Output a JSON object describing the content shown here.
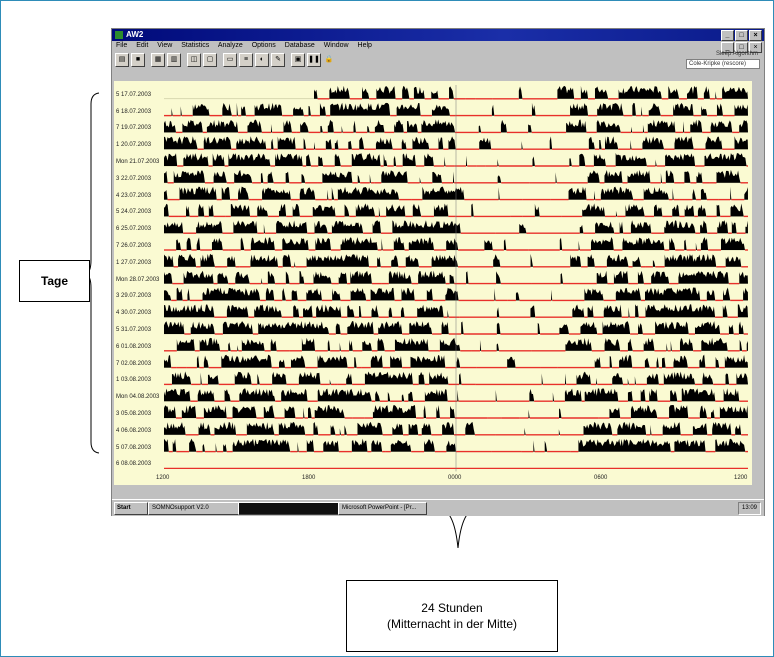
{
  "window": {
    "title": "AW2",
    "menu": [
      "File",
      "Edit",
      "View",
      "Statistics",
      "Analyze",
      "Options",
      "Database",
      "Window",
      "Help"
    ],
    "controls": [
      "_",
      "□",
      "×"
    ]
  },
  "algorithm": {
    "label": "Sleep Algorithm",
    "selected": "Cole-Kripke (rescore)"
  },
  "toolbar": {
    "icons": [
      "open-icon",
      "save-icon",
      "print-icon",
      "print-preview-icon",
      "zoom-icon",
      "copy-icon",
      "window-icon",
      "list-icon",
      "pie-chart-icon",
      "edit-icon",
      "report-icon",
      "pause-icon",
      "lock-icon"
    ]
  },
  "actogram": {
    "rows": [
      "5 17.07.2003",
      "6 18.07.2003",
      "7 19.07.2003",
      "1 20.07.2003",
      "Mon 21.07.2003",
      "3 22.07.2003",
      "4 23.07.2003",
      "5 24.07.2003",
      "6 25.07.2003",
      "7 26.07.2003",
      "1 27.07.2003",
      "Mon 28.07.2003",
      "3 29.07.2003",
      "4 30.07.2003",
      "5 31.07.2003",
      "6 01.08.2003",
      "7 02.08.2003",
      "1 03.08.2003",
      "Mon 04.08.2003",
      "3 05.08.2003",
      "4 06.08.2003",
      "5 07.08.2003",
      "6 08.08.2003"
    ],
    "x_ticks": [
      "1200",
      "1800",
      "0000",
      "0600",
      "1200"
    ],
    "colors": {
      "activity": "#000000",
      "sleep": "#e8302a",
      "background": "#fafad2"
    }
  },
  "taskbar": {
    "start": "Start",
    "tasks": [
      "SOMNOsupport V2.0",
      "",
      "Microsoft PowerPoint - [Pr..."
    ],
    "clock": "13:09"
  },
  "annotations": {
    "days_label": "Tage",
    "hours_line1": "24 Stunden",
    "hours_line2": "(Mitternacht in der Mitte)"
  }
}
